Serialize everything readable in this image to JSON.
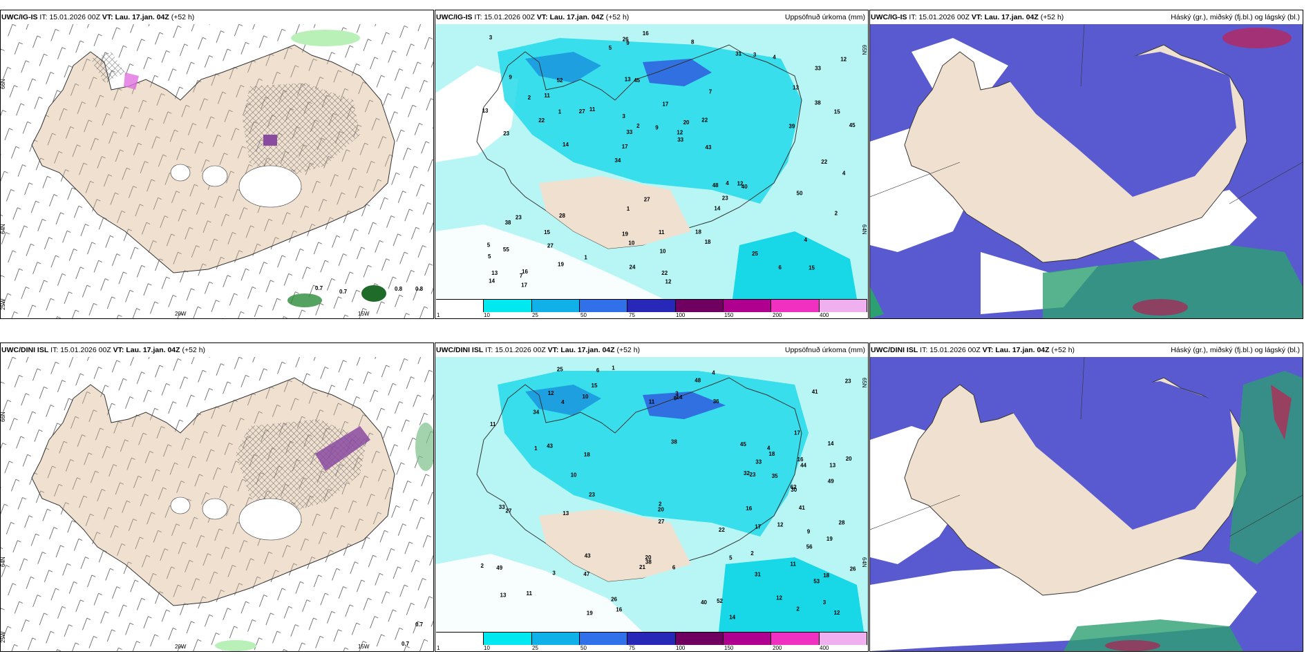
{
  "colors": {
    "land": "#f0e0d0",
    "sea_white": "#ffffff",
    "precip_light": "#b8f6f6",
    "precip_mid": "#18d8e8",
    "precip_dark": "#1ea0e0",
    "cloud_high": "#5a5ad0",
    "cloud_mid": "#2a2ab0",
    "cloud_low": "#30c080",
    "hatch": "#555555"
  },
  "panels": [
    {
      "id": "top-left",
      "model": "UWC/IG-IS",
      "it_label": "IT:",
      "it_value": "15.01.2026 00Z",
      "vt_label": "VT:",
      "vt_value": "Lau. 17.jan. 04Z",
      "lead": "(+52 h)",
      "right_title": "",
      "lat_labels": [
        "66N",
        "64N"
      ],
      "lon_labels": [
        "25W",
        "20W",
        "15W"
      ],
      "values": [
        "0.7",
        "0.7",
        "0.8",
        "0.8"
      ]
    },
    {
      "id": "top-middle",
      "model": "UWC/IG-IS",
      "it_label": "IT:",
      "it_value": "15.01.2026 00Z",
      "vt_label": "VT:",
      "vt_value": "Lau. 17.jan. 04Z",
      "lead": "(+52 h)",
      "right_title": "Uppsöfnuð úrkoma (mm)",
      "lat_labels": [
        "65N",
        "64N"
      ],
      "values": [
        "15",
        "23",
        "33",
        "34",
        "7",
        "16",
        "13",
        "17",
        "23",
        "11",
        "5",
        "27",
        "45",
        "20",
        "40",
        "9",
        "9",
        "45",
        "48",
        "38",
        "17",
        "19",
        "33",
        "52",
        "31",
        "28",
        "6",
        "4",
        "12",
        "12",
        "27",
        "22",
        "14",
        "19",
        "15",
        "12",
        "13",
        "10",
        "33",
        "38",
        "13",
        "12",
        "23",
        "18",
        "15",
        "17",
        "14",
        "11",
        "4",
        "16",
        "14",
        "13",
        "11",
        "3",
        "7",
        "8",
        "5",
        "2",
        "2",
        "1",
        "1",
        "4",
        "1",
        "5",
        "3",
        "2",
        "4",
        "3",
        "10",
        "9",
        "55",
        "43",
        "50",
        "24",
        "39",
        "27",
        "25",
        "22",
        "18",
        "26",
        "22",
        "22"
      ],
      "colorbar": [
        "1",
        "10",
        "25",
        "50",
        "75",
        "100",
        "150",
        "200",
        "400"
      ]
    },
    {
      "id": "top-right",
      "model": "UWC/IG-IS",
      "it_label": "IT:",
      "it_value": "15.01.2026 00Z",
      "vt_label": "VT:",
      "vt_value": "Lau. 17.jan. 04Z",
      "lead": "(+52 h)",
      "right_title": "Háský (gr.), miðský (fj.bl.) og lágský (bl.)"
    },
    {
      "id": "bottom-left",
      "model": "UWC/DINI ISL",
      "it_label": "IT:",
      "it_value": "15.01.2026 00Z",
      "vt_label": "VT:",
      "vt_value": "Lau. 17.jan. 04Z",
      "lead": "(+52 h)",
      "right_title": "",
      "lat_labels": [
        "66N",
        "64N"
      ],
      "lon_labels": [
        "25W",
        "20W",
        "15W"
      ],
      "values": [
        "0.7",
        "0.7"
      ]
    },
    {
      "id": "bottom-middle",
      "model": "UWC/DINI ISL",
      "it_label": "IT:",
      "it_value": "15.01.2026 00Z",
      "vt_label": "VT:",
      "vt_value": "Lau. 17.jan. 04Z",
      "lead": "(+52 h)",
      "right_title": "Uppsöfnuð úrkoma (mm)",
      "lat_labels": [
        "65N",
        "64N"
      ],
      "values": [
        "11",
        "14",
        "18",
        "38",
        "13",
        "15",
        "16",
        "47",
        "41",
        "43",
        "13",
        "11",
        "62",
        "16",
        "49",
        "34",
        "53",
        "10",
        "38",
        "44",
        "33",
        "27",
        "40",
        "32",
        "26",
        "21",
        "48",
        "36",
        "45",
        "26",
        "13",
        "31",
        "19",
        "20",
        "9",
        "12",
        "23",
        "11",
        "2",
        "23",
        "12",
        "35",
        "9",
        "10",
        "19",
        "17",
        "11",
        "4",
        "18",
        "18",
        "3",
        "27",
        "14",
        "20",
        "5",
        "16",
        "6",
        "12",
        "14",
        "3",
        "1",
        "2",
        "12",
        "6",
        "4",
        "3",
        "2",
        "2",
        "4",
        "1",
        "17",
        "30",
        "43",
        "22",
        "20",
        "33",
        "25",
        "49",
        "41",
        "56",
        "52",
        "28",
        "23"
      ],
      "colorbar": [
        "1",
        "10",
        "25",
        "50",
        "75",
        "100",
        "150",
        "200",
        "400"
      ]
    },
    {
      "id": "bottom-right",
      "model": "UWC/DINI ISL",
      "it_label": "IT:",
      "it_value": "15.01.2026 00Z",
      "vt_label": "VT:",
      "vt_value": "Lau. 17.jan. 04Z",
      "lead": "(+52 h)",
      "right_title": "Háský (gr.), miðský (fj.bl.) og lágský (bl.)"
    }
  ]
}
